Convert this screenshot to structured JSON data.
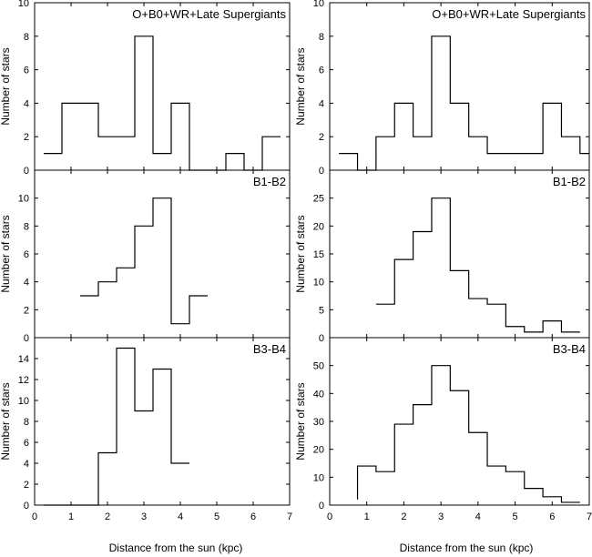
{
  "figure": {
    "left_xlabel": "Distance from the sun (kpc)",
    "right_xlabel": "Distance from the sun (kpc)"
  },
  "chart_data": [
    {
      "id": "L1",
      "type": "histogram",
      "column": "left",
      "row": 0,
      "title": "O+B0+WR+Late Supergiants",
      "ylabel": "Number of stars",
      "xlim": [
        0,
        7
      ],
      "ylim": [
        0,
        10
      ],
      "yticks": [
        0,
        2,
        4,
        6,
        8,
        10
      ],
      "xticks": [
        0,
        1,
        2,
        3,
        4,
        5,
        6,
        7
      ],
      "show_xticklabels": false,
      "bin_edges": [
        0.25,
        0.75,
        1.25,
        1.75,
        2.25,
        2.75,
        3.25,
        3.75,
        4.25,
        4.75,
        5.25,
        5.75,
        6.25,
        6.75
      ],
      "counts": [
        1,
        4,
        4,
        2,
        2,
        8,
        1,
        4,
        0,
        0,
        1,
        0,
        2
      ]
    },
    {
      "id": "L2",
      "type": "histogram",
      "column": "left",
      "row": 1,
      "title": "B1-B2",
      "ylabel": "Number of stars",
      "xlim": [
        0,
        7
      ],
      "ylim": [
        0,
        12
      ],
      "yticks": [
        0,
        2,
        4,
        6,
        8,
        10
      ],
      "xticks": [
        0,
        1,
        2,
        3,
        4,
        5,
        6,
        7
      ],
      "show_xticklabels": false,
      "bin_edges": [
        1.25,
        1.75,
        2.25,
        2.75,
        3.25,
        3.75,
        4.25,
        4.75
      ],
      "counts": [
        3,
        4,
        5,
        8,
        10,
        1,
        3
      ]
    },
    {
      "id": "L3",
      "type": "histogram",
      "column": "left",
      "row": 2,
      "title": "B3-B4",
      "ylabel": "Number of stars",
      "xlim": [
        0,
        7
      ],
      "ylim": [
        0,
        16
      ],
      "yticks": [
        0,
        2,
        4,
        6,
        8,
        10,
        12,
        14
      ],
      "xticks": [
        0,
        1,
        2,
        3,
        4,
        5,
        6,
        7
      ],
      "show_xticklabels": true,
      "bin_edges": [
        0.25,
        0.75,
        1.25,
        1.75,
        2.25,
        2.75,
        3.25,
        3.75,
        4.25
      ],
      "counts": [
        0,
        0,
        0,
        5,
        15,
        9,
        13,
        4
      ]
    },
    {
      "id": "R1",
      "type": "histogram",
      "column": "right",
      "row": 0,
      "title": "O+B0+WR+Late Supergiants",
      "ylabel": "Number of stars",
      "xlim": [
        0,
        7
      ],
      "ylim": [
        0,
        10
      ],
      "yticks": [
        0,
        2,
        4,
        6,
        8,
        10
      ],
      "xticks": [
        0,
        1,
        2,
        3,
        4,
        5,
        6,
        7
      ],
      "show_xticklabels": false,
      "bin_edges": [
        0.25,
        0.75,
        1.25,
        1.75,
        2.25,
        2.75,
        3.25,
        3.75,
        4.25,
        4.75,
        5.25,
        5.75,
        6.25,
        6.75,
        7.0
      ],
      "counts": [
        1,
        0,
        2,
        4,
        2,
        8,
        4,
        2,
        1,
        1,
        1,
        4,
        2,
        1
      ]
    },
    {
      "id": "R2",
      "type": "histogram",
      "column": "right",
      "row": 1,
      "title": "B1-B2",
      "ylabel": "Number of stars",
      "xlim": [
        0,
        7
      ],
      "ylim": [
        0,
        30
      ],
      "yticks": [
        0,
        5,
        10,
        15,
        20,
        25
      ],
      "xticks": [
        0,
        1,
        2,
        3,
        4,
        5,
        6,
        7
      ],
      "show_xticklabels": false,
      "bin_edges": [
        1.25,
        1.75,
        2.25,
        2.75,
        3.25,
        3.75,
        4.25,
        4.75,
        5.25,
        5.75,
        6.25,
        6.75
      ],
      "counts": [
        6,
        14,
        19,
        25,
        12,
        7,
        6,
        2,
        1,
        3,
        1
      ]
    },
    {
      "id": "R3",
      "type": "histogram",
      "column": "right",
      "row": 2,
      "title": "B3-B4",
      "ylabel": "Number of stars",
      "xlim": [
        0,
        7
      ],
      "ylim": [
        0,
        60
      ],
      "yticks": [
        0,
        10,
        20,
        30,
        40,
        50
      ],
      "xticks": [
        0,
        1,
        2,
        3,
        4,
        5,
        6,
        7
      ],
      "show_xticklabels": true,
      "bin_edges": [
        0.75,
        1.25,
        1.75,
        2.25,
        2.75,
        3.25,
        3.75,
        4.25,
        4.75,
        5.25,
        5.75,
        6.25,
        6.75
      ],
      "counts": [
        14,
        12,
        29,
        36,
        50,
        41,
        26,
        14,
        12,
        6,
        3,
        1
      ],
      "leading_drop_to": 2
    }
  ]
}
